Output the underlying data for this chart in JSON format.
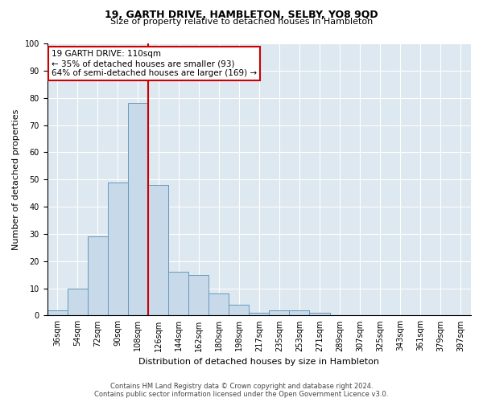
{
  "title1": "19, GARTH DRIVE, HAMBLETON, SELBY, YO8 9QD",
  "title2": "Size of property relative to detached houses in Hambleton",
  "xlabel": "Distribution of detached houses by size in Hambleton",
  "ylabel": "Number of detached properties",
  "categories": [
    "36sqm",
    "54sqm",
    "72sqm",
    "90sqm",
    "108sqm",
    "126sqm",
    "144sqm",
    "162sqm",
    "180sqm",
    "198sqm",
    "217sqm",
    "235sqm",
    "253sqm",
    "271sqm",
    "289sqm",
    "307sqm",
    "325sqm",
    "343sqm",
    "361sqm",
    "379sqm",
    "397sqm"
  ],
  "values": [
    2,
    10,
    29,
    49,
    78,
    48,
    16,
    15,
    8,
    4,
    1,
    2,
    2,
    1,
    0,
    0,
    0,
    0,
    0,
    0,
    0
  ],
  "bar_color": "#c8d9ea",
  "bar_edge_color": "#6699bb",
  "vline_bin_index": 4,
  "vline_color": "#cc0000",
  "annotation_line1": "19 GARTH DRIVE: 110sqm",
  "annotation_line2": "← 35% of detached houses are smaller (93)",
  "annotation_line3": "64% of semi-detached houses are larger (169) →",
  "annotation_box_facecolor": "#ffffff",
  "annotation_box_edgecolor": "#cc0000",
  "ylim": [
    0,
    100
  ],
  "yticks": [
    0,
    10,
    20,
    30,
    40,
    50,
    60,
    70,
    80,
    90,
    100
  ],
  "footer1": "Contains HM Land Registry data © Crown copyright and database right 2024.",
  "footer2": "Contains public sector information licensed under the Open Government Licence v3.0.",
  "fig_bg_color": "#ffffff",
  "plot_bg_color": "#dde8f0",
  "grid_color": "#ffffff",
  "title1_fontsize": 9,
  "title2_fontsize": 8,
  "ylabel_fontsize": 8,
  "xlabel_fontsize": 8,
  "tick_fontsize": 7,
  "annotation_fontsize": 7.5,
  "footer_fontsize": 6
}
